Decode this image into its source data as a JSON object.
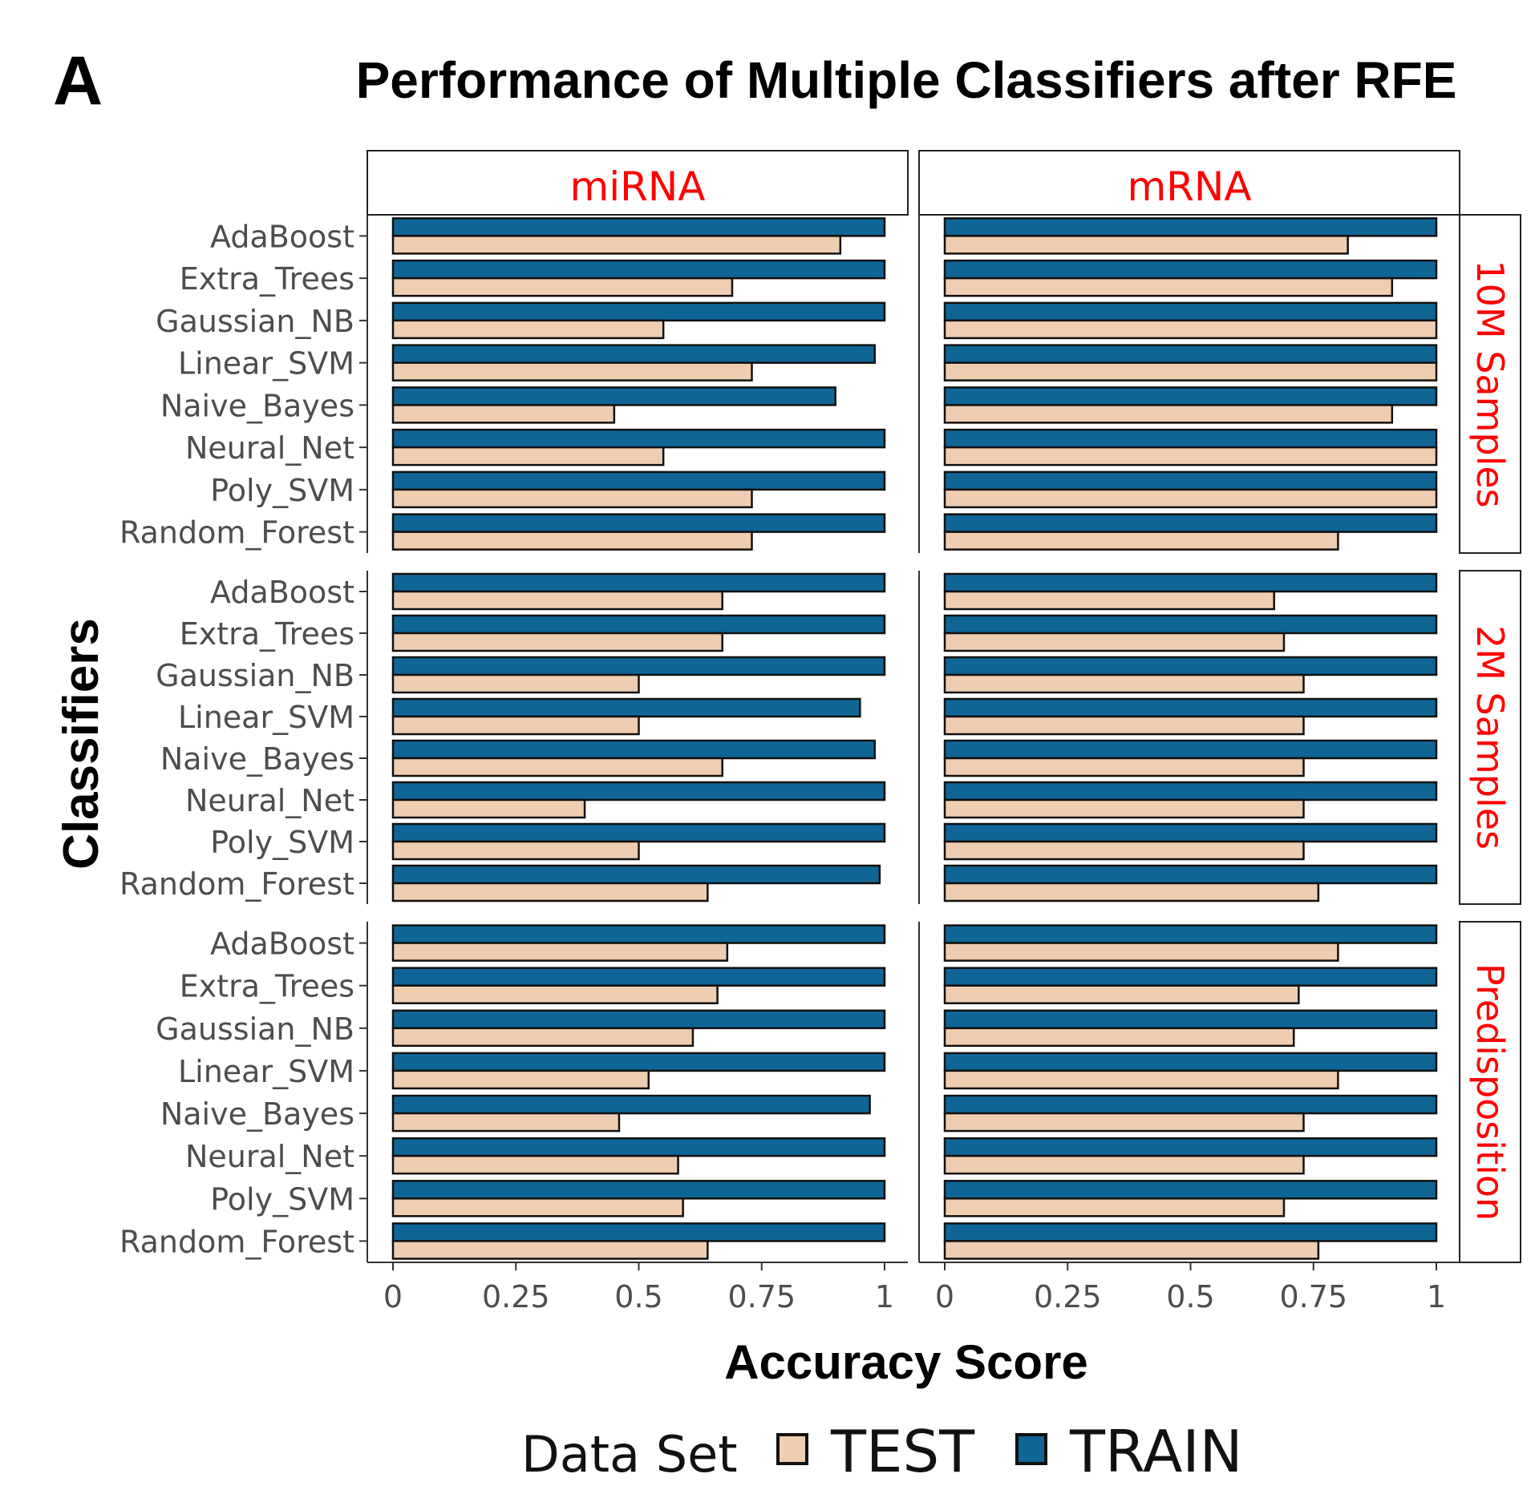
{
  "panel_label": "A",
  "colors": {
    "TRAIN": "#0f6596",
    "TEST": "#efcdb0",
    "strip_text": "#ff0000",
    "bar_outline": "#111111"
  },
  "chart_data": {
    "type": "bar",
    "orientation": "horizontal",
    "title": "Performance of Multiple Classifiers after RFE",
    "xlabel": "Accuracy Score",
    "ylabel": "Classifiers",
    "xlim": [
      0,
      1
    ],
    "xticks": [
      "0",
      "0.25",
      "0.5",
      "0.75",
      "1"
    ],
    "grid": false,
    "legend": {
      "title": "Data Set",
      "position": "bottom",
      "entries": [
        "TEST",
        "TRAIN"
      ]
    },
    "categories": [
      "AdaBoost",
      "Extra_Trees",
      "Gaussian_NB",
      "Linear_SVM",
      "Naive_Bayes",
      "Neural_Net",
      "Poly_SVM",
      "Random_Forest"
    ],
    "columns": [
      "miRNA",
      "mRNA"
    ],
    "rows": [
      "10M Samples",
      "2M Samples",
      "Predisposition"
    ],
    "facets": [
      {
        "row": "10M Samples",
        "column": "miRNA",
        "series": [
          {
            "name": "TRAIN",
            "values": [
              1.0,
              1.0,
              1.0,
              0.98,
              0.9,
              1.0,
              1.0,
              1.0
            ]
          },
          {
            "name": "TEST",
            "values": [
              0.91,
              0.69,
              0.55,
              0.73,
              0.45,
              0.55,
              0.73,
              0.73
            ]
          }
        ]
      },
      {
        "row": "10M Samples",
        "column": "mRNA",
        "series": [
          {
            "name": "TRAIN",
            "values": [
              1.0,
              1.0,
              1.0,
              1.0,
              1.0,
              1.0,
              1.0,
              1.0
            ]
          },
          {
            "name": "TEST",
            "values": [
              0.82,
              0.91,
              1.0,
              1.0,
              0.91,
              1.0,
              1.0,
              0.8
            ]
          }
        ]
      },
      {
        "row": "2M Samples",
        "column": "miRNA",
        "series": [
          {
            "name": "TRAIN",
            "values": [
              1.0,
              1.0,
              1.0,
              0.95,
              0.98,
              1.0,
              1.0,
              0.99
            ]
          },
          {
            "name": "TEST",
            "values": [
              0.67,
              0.67,
              0.5,
              0.5,
              0.67,
              0.39,
              0.5,
              0.64
            ]
          }
        ]
      },
      {
        "row": "2M Samples",
        "column": "mRNA",
        "series": [
          {
            "name": "TRAIN",
            "values": [
              1.0,
              1.0,
              1.0,
              1.0,
              1.0,
              1.0,
              1.0,
              1.0
            ]
          },
          {
            "name": "TEST",
            "values": [
              0.67,
              0.69,
              0.73,
              0.73,
              0.73,
              0.73,
              0.73,
              0.76
            ]
          }
        ]
      },
      {
        "row": "Predisposition",
        "column": "miRNA",
        "series": [
          {
            "name": "TRAIN",
            "values": [
              1.0,
              1.0,
              1.0,
              1.0,
              0.97,
              1.0,
              1.0,
              1.0
            ]
          },
          {
            "name": "TEST",
            "values": [
              0.68,
              0.66,
              0.61,
              0.52,
              0.46,
              0.58,
              0.59,
              0.64
            ]
          }
        ]
      },
      {
        "row": "Predisposition",
        "column": "mRNA",
        "series": [
          {
            "name": "TRAIN",
            "values": [
              1.0,
              1.0,
              1.0,
              1.0,
              1.0,
              1.0,
              1.0,
              1.0
            ]
          },
          {
            "name": "TEST",
            "values": [
              0.8,
              0.72,
              0.71,
              0.8,
              0.73,
              0.73,
              0.69,
              0.76
            ]
          }
        ]
      }
    ]
  }
}
